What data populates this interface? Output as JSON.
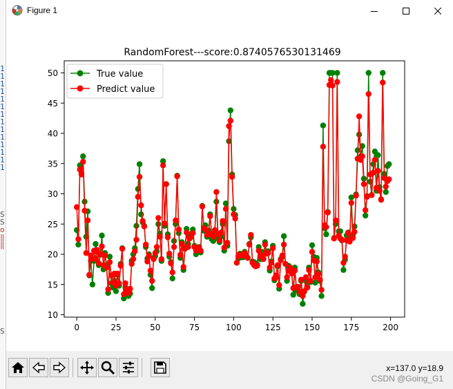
{
  "window": {
    "title": "Figure 1",
    "icon": "matplotlib-icon"
  },
  "controls": {
    "minimize": "minimize-icon",
    "maximize": "maximize-icon",
    "close": "close-icon"
  },
  "toolbar": {
    "buttons": [
      "home-icon",
      "back-icon",
      "forward-icon",
      "pan-icon",
      "zoom-icon",
      "configure-subplots-icon",
      "save-icon"
    ],
    "coords": "x=137.0 y=18.9"
  },
  "watermark": "CSDN @Going_G1",
  "chart_data": {
    "type": "line",
    "title": "RandomForest---score:0.8740576530131469",
    "xlabel": "",
    "ylabel": "",
    "xlim": [
      -8,
      209
    ],
    "ylim": [
      9.6,
      52
    ],
    "xticks": [
      0,
      25,
      50,
      75,
      100,
      125,
      150,
      175,
      200
    ],
    "yticks": [
      10,
      15,
      20,
      25,
      30,
      35,
      40,
      45,
      50
    ],
    "legend": "top-left",
    "series": [
      {
        "name": "True value",
        "color": "#008000",
        "values": [
          24,
          21.6,
          34.7,
          33.4,
          36.2,
          28.7,
          22.9,
          27.1,
          16.5,
          18.9,
          15,
          18.9,
          21.7,
          20.4,
          18.2,
          19.9,
          23.1,
          17.5,
          20.2,
          18.2,
          13.6,
          19.6,
          15.2,
          14.5,
          15.6,
          13.9,
          16.6,
          14.8,
          18.4,
          21,
          12.7,
          14.5,
          13.2,
          13.1,
          13.5,
          18.9,
          20,
          21,
          24.7,
          30.8,
          34.9,
          26.6,
          25.3,
          24.7,
          21.2,
          19.3,
          20,
          16.6,
          14.4,
          19.4,
          19.7,
          20.5,
          25,
          23.4,
          18.9,
          35.4,
          24.7,
          31.6,
          23.3,
          19.6,
          18.7,
          16,
          22.2,
          25,
          33,
          23.5,
          19.4,
          22,
          17.4,
          20.9,
          24.2,
          21.7,
          22.8,
          23.4,
          24.1,
          21.4,
          20,
          20.8,
          21.2,
          20.3,
          28,
          23.9,
          24.8,
          22.9,
          23.9,
          26.6,
          22.5,
          22.2,
          23.6,
          28.7,
          22.6,
          22,
          22.9,
          25,
          20.6,
          28.4,
          21.4,
          38.7,
          43.8,
          33.2,
          27.5,
          26.5,
          18.6,
          19.3,
          20.1,
          19.5,
          19.5,
          20.4,
          19.8,
          19.4,
          21.7,
          22.8,
          18.8,
          18.7,
          18.5,
          18.3,
          21.2,
          19.2,
          20.4,
          19.3,
          22,
          20.3,
          20.5,
          17.3,
          18.8,
          21.4,
          15.7,
          16.2,
          18,
          14.3,
          19.2,
          19.6,
          23,
          18.4,
          15.6,
          18.1,
          17.4,
          17.1,
          13.3,
          17.8,
          14,
          14.4,
          13.4,
          15.6,
          11.8,
          13.8,
          15.6,
          14.6,
          17.8,
          15.4,
          21.5,
          19.6,
          15.3,
          19.4,
          17,
          15.6,
          13.1,
          41.3,
          24.3,
          23.3,
          27,
          50,
          50,
          50,
          22.7,
          25,
          50,
          23.8,
          23.8,
          22.3,
          17.4,
          19.1,
          23.1,
          23.6,
          22.6,
          29.4,
          23.2,
          24.6,
          29.9,
          37.2,
          39.8,
          36.2,
          37.9,
          32.5,
          26.4,
          29.6,
          50,
          32,
          29.8,
          34.9,
          37,
          30.5,
          36.4,
          31.1,
          29.1,
          50,
          33.3,
          30.3,
          34.6,
          34.9
        ]
      },
      {
        "name": "Predict value",
        "color": "#ff0000",
        "values": [
          27.8,
          22.5,
          34,
          33.2,
          35.3,
          27.2,
          20.2,
          25.6,
          16.6,
          19.8,
          19.2,
          20.6,
          19.3,
          20.7,
          18.5,
          20,
          21.3,
          18.2,
          19.8,
          17.8,
          14.2,
          18.7,
          16.5,
          15.3,
          16.8,
          14.8,
          16.8,
          15.2,
          18.1,
          20.9,
          13.4,
          15.2,
          14.1,
          13.6,
          14.3,
          18.4,
          19.2,
          20.5,
          22.4,
          29.5,
          32.8,
          28.1,
          25.5,
          24.6,
          21.6,
          18.8,
          19.7,
          17.3,
          15.6,
          19.2,
          20.2,
          21.2,
          26,
          22.9,
          19.2,
          34.7,
          25.1,
          31.6,
          22.8,
          20.1,
          18.5,
          17,
          21.2,
          25.6,
          32.9,
          24.1,
          19.9,
          21.7,
          17.9,
          21,
          23.6,
          21.2,
          22.6,
          22.9,
          23.5,
          21.2,
          20.6,
          21.1,
          20.8,
          20.6,
          27.9,
          24.3,
          24.1,
          23.2,
          23.4,
          26.3,
          23.3,
          22.9,
          24,
          30.3,
          23.3,
          22.3,
          23.6,
          25.5,
          21.1,
          27.5,
          21.9,
          41.2,
          42.1,
          32.8,
          26.6,
          25.9,
          18.6,
          19.7,
          19.9,
          19.8,
          19.8,
          20.2,
          19.6,
          19.4,
          21.6,
          23.2,
          18.6,
          18.2,
          18,
          18.1,
          20.6,
          19.7,
          19.8,
          19.2,
          21.6,
          20.1,
          20.2,
          17.8,
          18.6,
          21,
          16,
          16.5,
          18.2,
          14.9,
          19,
          19.8,
          21.6,
          18.4,
          16.2,
          17.3,
          17.8,
          16.8,
          14.4,
          17.3,
          14.6,
          14.6,
          13.8,
          15.8,
          13.1,
          13.9,
          16.2,
          14.5,
          17.4,
          15.6,
          20.4,
          19,
          16.2,
          18.8,
          16.7,
          15.8,
          14.1,
          37.8,
          24.8,
          24.5,
          26.9,
          48,
          48.8,
          47.9,
          22.6,
          25.6,
          48.5,
          23.1,
          22.6,
          22.4,
          18.6,
          19.6,
          22.3,
          23.5,
          22.1,
          28.5,
          22.7,
          23.7,
          29.7,
          35.8,
          42.8,
          35.6,
          36.2,
          31.6,
          27.3,
          29.5,
          46.5,
          33.2,
          29.8,
          33.5,
          35.6,
          31,
          33.8,
          30.5,
          29,
          48.4,
          32.6,
          31.2,
          32.1,
          32.4
        ]
      }
    ]
  }
}
